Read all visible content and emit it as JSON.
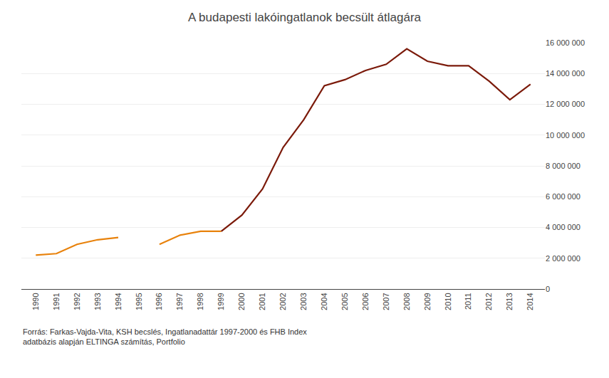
{
  "chart_data": {
    "type": "line",
    "title": "A budapesti lakóingatlanok becsült átlagára",
    "annotations": [
      "Forrás: Farkas-Vajda-Vita, KSH becslés, Ingatlanadattár 1997-2000 és FHB Index\nadatbázis alapján ELTINGA számítás, Portfolio"
    ],
    "x": [
      1990,
      1991,
      1992,
      1993,
      1994,
      1995,
      1996,
      1997,
      1998,
      1999,
      2000,
      2001,
      2002,
      2003,
      2004,
      2005,
      2006,
      2007,
      2008,
      2009,
      2010,
      2011,
      2012,
      2013,
      2014
    ],
    "series": [
      {
        "color": "#E8820C",
        "values": [
          2200000,
          2300000,
          2900000,
          3200000,
          3350000,
          null,
          null,
          null,
          null,
          null,
          null,
          null,
          null,
          null,
          null,
          null,
          null,
          null,
          null,
          null,
          null,
          null,
          null,
          null,
          null
        ]
      },
      {
        "color": "#E8820C",
        "values": [
          null,
          null,
          null,
          null,
          null,
          null,
          2900000,
          3500000,
          3750000,
          3750000,
          null,
          null,
          null,
          null,
          null,
          null,
          null,
          null,
          null,
          null,
          null,
          null,
          null,
          null,
          null
        ]
      },
      {
        "color": "#7B1A0A",
        "values": [
          null,
          null,
          null,
          null,
          null,
          null,
          null,
          null,
          null,
          3750000,
          4800000,
          6500000,
          9200000,
          11000000,
          13200000,
          13600000,
          14200000,
          14600000,
          15600000,
          14800000,
          14500000,
          14500000,
          13500000,
          12300000,
          13300000
        ]
      }
    ],
    "xlim": [
      1989.3,
      2014.7
    ],
    "xticks": [
      1990,
      1991,
      1992,
      1993,
      1994,
      1995,
      1996,
      1997,
      1998,
      1999,
      2000,
      2001,
      2002,
      2003,
      2004,
      2005,
      2006,
      2007,
      2008,
      2009,
      2010,
      2011,
      2012,
      2013,
      2014
    ],
    "ylim": [
      0,
      16000000
    ],
    "yticks": [
      0,
      {
        "value": 2000000,
        "label": "2 000 000"
      },
      {
        "value": 4000000,
        "label": "4 000 000"
      },
      {
        "value": 6000000,
        "label": "6 000 000"
      },
      {
        "value": 8000000,
        "label": "8 000 000"
      },
      {
        "value": 10000000,
        "label": "10 000 000"
      },
      {
        "value": 12000000,
        "label": "12 000 000"
      },
      {
        "value": 14000000,
        "label": "14 000 000"
      },
      {
        "value": 16000000,
        "label": "16 000 000"
      }
    ],
    "grid": true
  }
}
